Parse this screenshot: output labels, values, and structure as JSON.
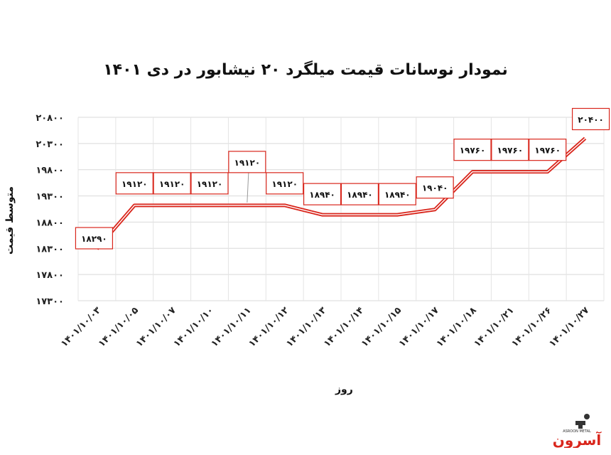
{
  "chart_data": {
    "type": "line",
    "title": "نمودار نوسانات قیمت میلگرد ۲۰ نیشابور در دی ۱۴۰۱",
    "xlabel": "روز",
    "ylabel": "متوسط قیمت",
    "categories": [
      "۱۴۰۱/۱۰/۰۳",
      "۱۴۰۱/۱۰/۰۵",
      "۱۴۰۱/۱۰/۰۷",
      "۱۴۰۱/۱۰/۱۰",
      "۱۴۰۱/۱۰/۱۱",
      "۱۴۰۱/۱۰/۱۲",
      "۱۴۰۱/۱۰/۱۳",
      "۱۴۰۱/۱۰/۱۴",
      "۱۴۰۱/۱۰/۱۵",
      "۱۴۰۱/۱۰/۱۷",
      "۱۴۰۱/۱۰/۱۸",
      "۱۴۰۱/۱۰/۲۱",
      "۱۴۰۱/۱۰/۲۶",
      "۱۴۰۱/۱۰/۲۷"
    ],
    "values": [
      18290,
      19120,
      19120,
      19120,
      19120,
      19120,
      18940,
      18940,
      18940,
      19040,
      19760,
      19760,
      19760,
      20400
    ],
    "data_labels": [
      "۱۸۲۹۰",
      "۱۹۱۲۰",
      "۱۹۱۲۰",
      "۱۹۱۲۰",
      "۱۹۱۲۰",
      "۱۹۱۲۰",
      "۱۸۹۴۰",
      "۱۸۹۴۰",
      "۱۸۹۴۰",
      "۱۹۰۴۰",
      "۱۹۷۶۰",
      "۱۹۷۶۰",
      "۱۹۷۶۰",
      "۲۰۴۰۰"
    ],
    "yticks": [
      17300,
      17800,
      18300,
      18800,
      19300,
      19800,
      20300,
      20800
    ],
    "ytick_labels": [
      "۱۷۳۰۰",
      "۱۷۸۰۰",
      "۱۸۳۰۰",
      "۱۸۸۰۰",
      "۱۹۳۰۰",
      "۱۹۸۰۰",
      "۲۰۳۰۰",
      "۲۰۸۰۰"
    ],
    "ylim": [
      17300,
      20800
    ],
    "grid": true,
    "line_color": "#d9261c"
  },
  "logo": {
    "text": "آسرون",
    "subtext": "ASROON METAL"
  }
}
